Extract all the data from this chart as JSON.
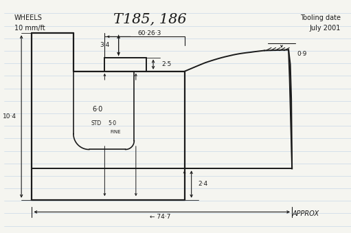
{
  "title": "T185, 186",
  "subtitle_left": "WHEELS\n10 mm/ft",
  "subtitle_right": "Tooling date\nJuly 2001",
  "approx_label": "APPROX",
  "bg_color": "#f5f5f0",
  "line_color": "#1a1a1a",
  "ruled_line_color": "#c8d8e8",
  "annotations": {
    "dim_60_26_3": "60·26·3",
    "dim_3_4": "3·4",
    "dim_2_5": "2·5",
    "dim_10_4": "10·4",
    "dim_6_0": "6·0",
    "dim_std": "STD",
    "dim_5_0_fine": "5·0",
    "dim_fine": "FINE",
    "dim_2_4": "2·4",
    "dim_74_7": "74·7",
    "dim_0_9": "0·9"
  }
}
